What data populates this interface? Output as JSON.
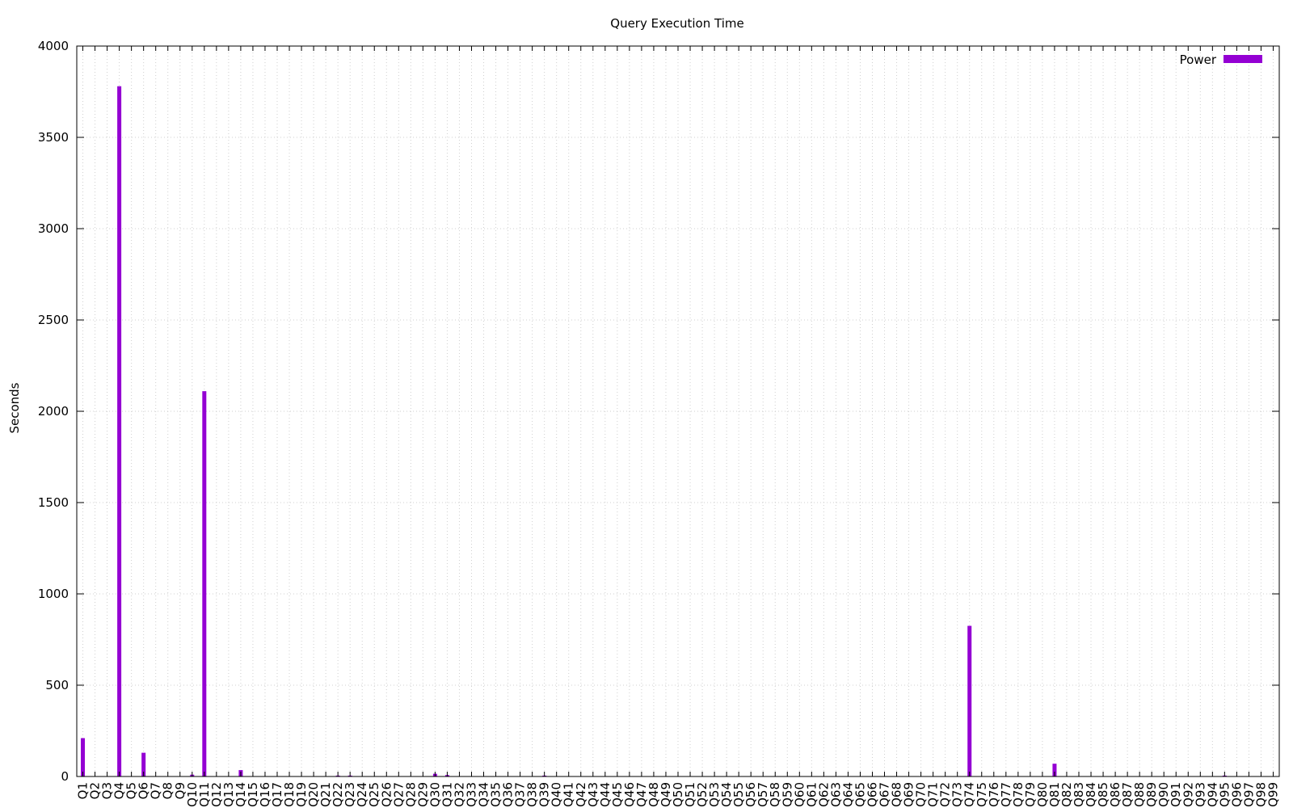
{
  "chart_data": {
    "type": "bar",
    "title": "Query Execution Time",
    "xlabel": "",
    "ylabel": "Seconds",
    "ylim": [
      0,
      4000
    ],
    "yticks": [
      "0",
      "500",
      "1000",
      "1500",
      "2000",
      "2500",
      "3000",
      "3500",
      "4000"
    ],
    "grid": true,
    "legend_position": "top-right",
    "categories": [
      "Q1",
      "Q2",
      "Q3",
      "Q4",
      "Q5",
      "Q6",
      "Q7",
      "Q8",
      "Q9",
      "Q10",
      "Q11",
      "Q12",
      "Q13",
      "Q14",
      "Q15",
      "Q16",
      "Q17",
      "Q18",
      "Q19",
      "Q20",
      "Q21",
      "Q22",
      "Q23",
      "Q24",
      "Q25",
      "Q26",
      "Q27",
      "Q28",
      "Q29",
      "Q30",
      "Q31",
      "Q32",
      "Q33",
      "Q34",
      "Q35",
      "Q36",
      "Q37",
      "Q38",
      "Q39",
      "Q40",
      "Q41",
      "Q42",
      "Q43",
      "Q44",
      "Q45",
      "Q46",
      "Q47",
      "Q48",
      "Q49",
      "Q50",
      "Q51",
      "Q52",
      "Q53",
      "Q54",
      "Q55",
      "Q56",
      "Q57",
      "Q58",
      "Q59",
      "Q60",
      "Q61",
      "Q62",
      "Q63",
      "Q64",
      "Q65",
      "Q66",
      "Q67",
      "Q68",
      "Q69",
      "Q70",
      "Q71",
      "Q72",
      "Q73",
      "Q74",
      "Q75",
      "Q76",
      "Q77",
      "Q78",
      "Q79",
      "Q80",
      "Q81",
      "Q82",
      "Q83",
      "Q84",
      "Q85",
      "Q86",
      "Q87",
      "Q88",
      "Q89",
      "Q90",
      "Q91",
      "Q92",
      "Q93",
      "Q94",
      "Q95",
      "Q96",
      "Q97",
      "Q98",
      "Q99"
    ],
    "series": [
      {
        "name": "Power",
        "color": "#9400d3",
        "values": [
          210,
          0,
          0,
          3780,
          0,
          130,
          0,
          0,
          0,
          10,
          2110,
          0,
          0,
          35,
          0,
          0,
          0,
          0,
          0,
          0,
          0,
          5,
          5,
          0,
          0,
          0,
          0,
          0,
          0,
          15,
          8,
          0,
          0,
          0,
          0,
          0,
          0,
          0,
          5,
          0,
          0,
          0,
          0,
          0,
          0,
          0,
          0,
          0,
          0,
          0,
          0,
          0,
          0,
          0,
          0,
          0,
          0,
          0,
          0,
          0,
          0,
          0,
          0,
          0,
          0,
          0,
          0,
          0,
          0,
          0,
          0,
          0,
          0,
          825,
          0,
          0,
          0,
          0,
          0,
          0,
          70,
          0,
          0,
          0,
          0,
          0,
          0,
          0,
          0,
          0,
          0,
          0,
          0,
          0,
          5,
          0,
          0,
          0,
          0
        ]
      }
    ]
  }
}
